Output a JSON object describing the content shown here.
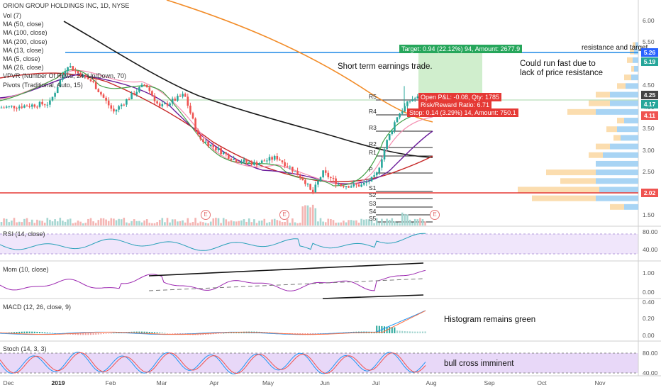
{
  "header": {
    "title": "ORION GROUP HOLDINGS INC, 1D, NYSE",
    "legend": [
      "Vol (7)",
      "MA (50, close)",
      "MA (100, close)",
      "MA (200, close)",
      "MA (13, close)",
      "MA (5, close)",
      "MA (26, close)",
      "VPVR (Number Of Rows, 24, Up/Down, 70)",
      "Pivots (Traditional, Auto, 15)"
    ]
  },
  "annotations": {
    "short_term": "Short term earnings trade.",
    "could_run": "Could run fast due to",
    "could_run2": "lack of price resistance",
    "resistance": "resistance and target",
    "histogram": "Histogram remains green",
    "bull_cross": "bull cross imminent"
  },
  "trade_box": {
    "target": "Target: 0.94 (22.12%) 94, Amount: 2677.9",
    "open_pl": "Open P&L: -0.08, Qty: 1785",
    "risk_reward": "Risk/Reward Ratio: 6.71",
    "stop": "Stop: 0.14 (3.29%) 14, Amount: 750.1"
  },
  "price_axis": {
    "ticks": [
      "6.00",
      "5.50",
      "5.00",
      "4.50",
      "4.00",
      "3.50",
      "3.00",
      "2.50",
      "2.00",
      "1.50"
    ],
    "tags": [
      {
        "value": "5.26",
        "color": "#2962ff"
      },
      {
        "value": "5.19",
        "color": "#26a69a"
      },
      {
        "value": "4.25",
        "color": "#444444"
      },
      {
        "value": "4.17",
        "color": "#26a69a"
      },
      {
        "value": "4.11",
        "color": "#ef5350"
      },
      {
        "value": "2.02",
        "color": "#ef5350"
      }
    ]
  },
  "pivots": [
    "R5",
    "R4",
    "R3",
    "R2",
    "R1",
    "P",
    "S1",
    "S2",
    "S3",
    "S4",
    "S5"
  ],
  "earnings_marker": "E",
  "indicators": {
    "rsi": {
      "label": "RSI (14, close)",
      "ticks": [
        "80.00",
        "40.00"
      ]
    },
    "mom": {
      "label": "Mom (10, close)",
      "ticks": [
        "1.00",
        "0.00"
      ]
    },
    "macd": {
      "label": "MACD (12, 26, close, 9)",
      "ticks": [
        "0.40",
        "0.20",
        "0.00"
      ]
    },
    "stoch": {
      "label": "Stoch (14, 3, 3)",
      "ticks": [
        "80.00",
        "40.00"
      ]
    }
  },
  "x_axis": {
    "labels": [
      "Dec",
      "2019",
      "Feb",
      "Mar",
      "Apr",
      "May",
      "Jun",
      "Jul",
      "Aug",
      "Sep",
      "Oct",
      "Nov"
    ]
  },
  "chart_data": {
    "type": "line",
    "title": "ORION GROUP HOLDINGS INC, 1D, NYSE",
    "x": [
      "Dec",
      "2019",
      "Feb",
      "Mar",
      "Apr",
      "May",
      "Jun",
      "Jul",
      "Aug"
    ],
    "series": [
      {
        "name": "",
        "values": [
          4.0,
          4.3,
          4.0,
          4.5,
          3.2,
          2.5,
          2.15,
          2.3,
          4.17
        ]
      }
    ],
    "levels": {
      "resistance": 5.26,
      "support": 2.02,
      "entry": 4.25,
      "target": 5.19,
      "stop": 4.11
    },
    "ylim": [
      1.3,
      6.3
    ]
  }
}
